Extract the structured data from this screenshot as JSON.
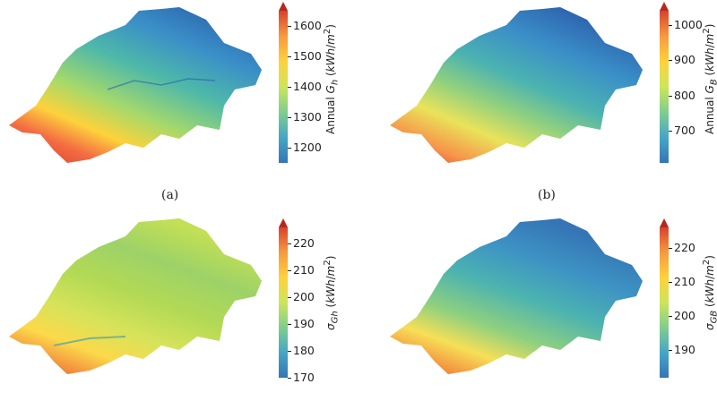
{
  "panels": [
    {
      "id": "a",
      "caption": "(a)",
      "colorbar_label": "Annual G_h (kWh/m²)",
      "colorbar_ticks": [
        "1600",
        "1500",
        "1400",
        "1300",
        "1200"
      ],
      "colorbar_range": [
        1150,
        1650
      ],
      "colorbar_values": [
        1600,
        1500,
        1400,
        1300,
        1200
      ],
      "colormap": "jet",
      "map_description_color_dominant": "#3aa0c8"
    },
    {
      "id": "b",
      "caption": "(b)",
      "colorbar_label": "Annual G_B (kWh/m²)",
      "colorbar_ticks": [
        "1000",
        "900",
        "800",
        "700"
      ],
      "colorbar_range": [
        610,
        1040
      ],
      "colorbar_values": [
        1000,
        900,
        800,
        700
      ],
      "colormap": "jet",
      "map_description_color_dominant": "#2f86c4"
    },
    {
      "id": "c",
      "caption": "",
      "colorbar_label": "σ_Gh (kWh/m²)",
      "colorbar_ticks": [
        "220",
        "210",
        "200",
        "190",
        "180",
        "170"
      ],
      "colorbar_range": [
        170,
        226
      ],
      "colorbar_values": [
        220,
        210,
        200,
        190,
        180,
        170
      ],
      "colormap": "jet",
      "map_description_color_dominant": "#b7d94a"
    },
    {
      "id": "d",
      "caption": "",
      "colorbar_label": "σ_GB (kWh/m²)",
      "colorbar_ticks": [
        "220",
        "210",
        "200",
        "190"
      ],
      "colorbar_range": [
        182,
        226
      ],
      "colorbar_values": [
        220,
        210,
        200,
        190
      ],
      "colormap": "jet",
      "map_description_color_dominant": "#45a7b6"
    }
  ]
}
